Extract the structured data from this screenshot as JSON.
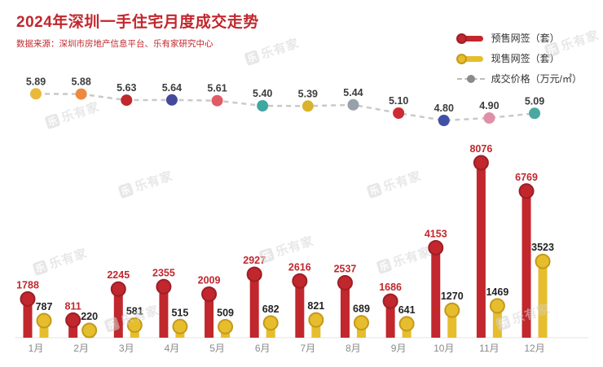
{
  "header": {
    "title": "2024年深圳一手住宅月度成交走势",
    "source": "数据来源：深圳市房地产信息平台、乐有家研究中心"
  },
  "legend": [
    {
      "label": "预售网签（套）",
      "type": "bar",
      "color": "#c1272d",
      "ring": "#9c1f26"
    },
    {
      "label": "现售网签（套）",
      "type": "bar",
      "color": "#e6bd2d",
      "ring": "#c49a1a"
    },
    {
      "label": "成交价格（万元/㎡）",
      "type": "line",
      "color": "#bdbdbd",
      "dot": "#8a8a8a"
    }
  ],
  "watermark": {
    "text": "乐有家"
  },
  "chart_data": {
    "type": "combo",
    "categories": [
      "1月",
      "2月",
      "3月",
      "4月",
      "5月",
      "6月",
      "7月",
      "8月",
      "9月",
      "10月",
      "11月",
      "12月"
    ],
    "series": [
      {
        "name": "预售网签（套）",
        "type": "bar",
        "color": "#c1272d",
        "ring": "#9c1f26",
        "label_color": "#c1272d",
        "values": [
          1788,
          811,
          2245,
          2355,
          2009,
          2927,
          2616,
          2537,
          1686,
          4153,
          8076,
          6769
        ]
      },
      {
        "name": "现售网签（套）",
        "type": "bar",
        "color": "#e6bd2d",
        "ring": "#c49a1a",
        "label_color": "#222222",
        "values": [
          787,
          220,
          581,
          515,
          509,
          682,
          821,
          689,
          641,
          1270,
          1469,
          3523
        ]
      },
      {
        "name": "成交价格（万元/㎡）",
        "type": "line",
        "color": "#c9c9c9",
        "values": [
          5.89,
          5.88,
          5.63,
          5.64,
          5.61,
          5.4,
          5.39,
          5.44,
          5.1,
          4.8,
          4.9,
          5.09
        ],
        "point_colors": [
          "#eab93a",
          "#ee8a3e",
          "#c1272d",
          "#45499c",
          "#e05b66",
          "#3fa7a2",
          "#d9b32c",
          "#98a0a8",
          "#cc2b33",
          "#3f51a5",
          "#e18fa7",
          "#49a8a2"
        ]
      }
    ],
    "ylim_bar": [
      0,
      8500
    ],
    "ylim_line": [
      4.6,
      6.0
    ],
    "grid": false,
    "legend_position": "top-right"
  }
}
